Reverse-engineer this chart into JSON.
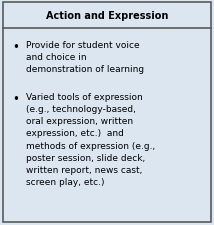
{
  "title": "Action and Expression",
  "bullet1": "Provide for student voice\nand choice in\ndemonstration of learning",
  "bullet2": "Varied tools of expression\n(e.g., technology-based,\noral expression, written\nexpression, etc.)  and\nmethods of expression (e.g.,\nposter session, slide deck,\nwritten report, news cast,\nscreen play, etc.)",
  "bg_color": "#dce6f1",
  "border_color": "#5a5a5a",
  "title_fontsize": 7.0,
  "body_fontsize": 6.5,
  "figsize": [
    2.14,
    2.26
  ],
  "dpi": 100
}
